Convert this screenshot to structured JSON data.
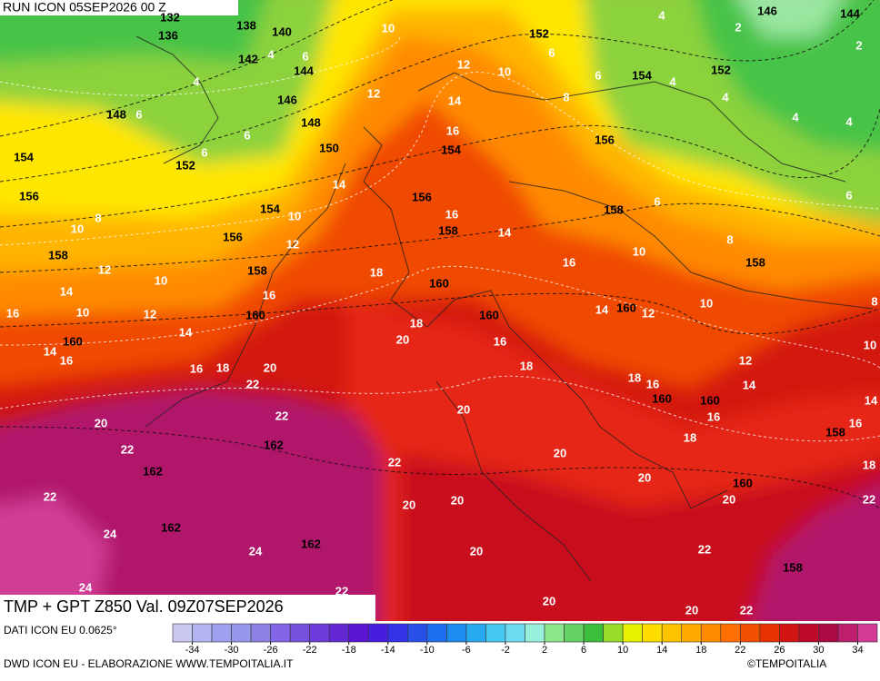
{
  "header": "RUN ICON 05SEP2026 00 Z",
  "footer_title": "TMP + GPT Z850 Val. 09Z07SEP2026",
  "source_note": "DATI ICON EU 0.0625°",
  "credit": "DWD ICON EU - ELABORAZIONE WWW.TEMPOITALIA.IT",
  "copyright": "©TEMPOITALIA",
  "map": {
    "height_labels": [
      132,
      136,
      138,
      140,
      142,
      144,
      146,
      148,
      150,
      148,
      152,
      154,
      156,
      154,
      156,
      158,
      158,
      160,
      160,
      154,
      156,
      158,
      160,
      160,
      152,
      154,
      152,
      146,
      144,
      156,
      158,
      158,
      160,
      160,
      160,
      158,
      160,
      158,
      162,
      162,
      162,
      162
    ],
    "temperature_labels": [
      10,
      4,
      6,
      4,
      6,
      6,
      6,
      12,
      10,
      12,
      14,
      16,
      14,
      10,
      12,
      16,
      14,
      18,
      16,
      12,
      10,
      8,
      10,
      14,
      10,
      12,
      16,
      14,
      14,
      16,
      16,
      18,
      20,
      22,
      22,
      18,
      20,
      16,
      18,
      16,
      14,
      12,
      10,
      10,
      8,
      6,
      8,
      6,
      4,
      4,
      4,
      4,
      2,
      4,
      2,
      6,
      6,
      12,
      14,
      14,
      16,
      18,
      16,
      16,
      18,
      20,
      20,
      20,
      20,
      22,
      18,
      22,
      20,
      22,
      22,
      24,
      24,
      24,
      22,
      20,
      20,
      20,
      20,
      20,
      22,
      22,
      8,
      10
    ]
  },
  "colorbar": {
    "range": [
      -36,
      36
    ],
    "ticks": [
      -34,
      -30,
      -26,
      -22,
      -18,
      -14,
      -10,
      -6,
      -2,
      2,
      6,
      10,
      14,
      18,
      22,
      26,
      30,
      34
    ],
    "colors": [
      "#c8c8f0",
      "#b4b4f0",
      "#a0a0f0",
      "#9696eb",
      "#8c82e6",
      "#8264e6",
      "#7850e0",
      "#6e3cdc",
      "#6428d2",
      "#5a14d2",
      "#461ee0",
      "#3232e6",
      "#2850e6",
      "#1e6ef0",
      "#1e8cf0",
      "#28aaf0",
      "#46c8f0",
      "#6edcf0",
      "#96f0dc",
      "#8ce68c",
      "#64d264",
      "#3cbe3c",
      "#96dc28",
      "#e6f000",
      "#ffdc00",
      "#ffc300",
      "#ffaa00",
      "#ff8c00",
      "#ff6e00",
      "#f05000",
      "#e63200",
      "#d21414",
      "#be0a28",
      "#aa0a46",
      "#be1e6e",
      "#d23c96"
    ]
  }
}
